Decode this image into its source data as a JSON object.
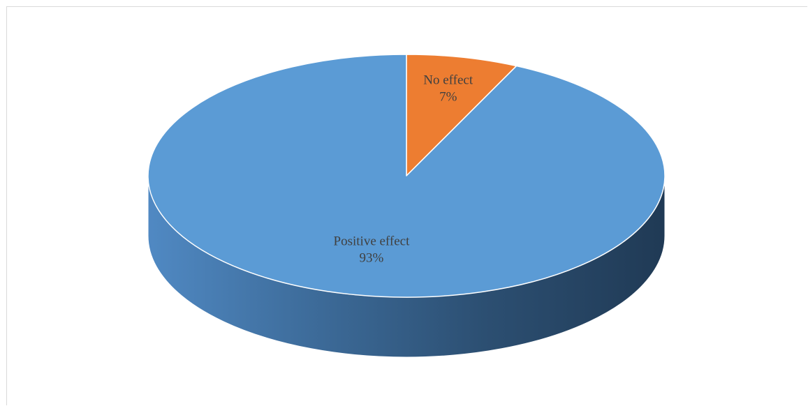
{
  "chart_data": {
    "type": "pie",
    "style": "3d",
    "categories": [
      "No effect",
      "Positive effect"
    ],
    "values": [
      7,
      93
    ],
    "colors": [
      "#ED7D31",
      "#5B9BD5"
    ],
    "data_labels": [
      {
        "name": "No effect",
        "value": "7%"
      },
      {
        "name": "Positive effect",
        "value": "93%"
      }
    ],
    "legend": "none"
  }
}
